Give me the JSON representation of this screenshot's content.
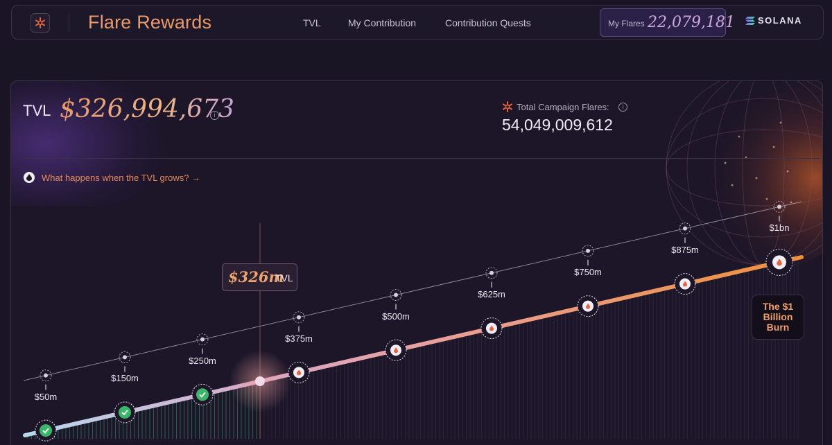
{
  "header": {
    "app_title": "Flare Rewards",
    "nav": [
      "TVL",
      "My Contribution",
      "Contribution Quests"
    ],
    "my_flares_label": "My Flares",
    "my_flares_value": "22,079,181",
    "brand": "SOLANA"
  },
  "stats": {
    "tvl_label": "TVL",
    "tvl_value": "$326,994,673",
    "campaign_label": "Total Campaign Flares:",
    "campaign_value": "54,049,009,612"
  },
  "link": {
    "what_happens": "What happens when the TVL grows? →"
  },
  "current": {
    "value": "$326m",
    "unit": "TVL"
  },
  "milestones": [
    {
      "label": "$50m",
      "state": "completed"
    },
    {
      "label": "$150m",
      "state": "completed"
    },
    {
      "label": "$250m",
      "state": "completed"
    },
    {
      "label": "$375m",
      "state": "upcoming"
    },
    {
      "label": "$500m",
      "state": "upcoming"
    },
    {
      "label": "$625m",
      "state": "upcoming"
    },
    {
      "label": "$750m",
      "state": "upcoming"
    },
    {
      "label": "$875m",
      "state": "upcoming"
    },
    {
      "label": "$1bn",
      "state": "upcoming"
    }
  ],
  "burn": {
    "label": "The $1 Billion Burn"
  },
  "colors": {
    "accent": "#e99a6b",
    "complete": "#3bb56a",
    "bg": "#1a1525"
  }
}
